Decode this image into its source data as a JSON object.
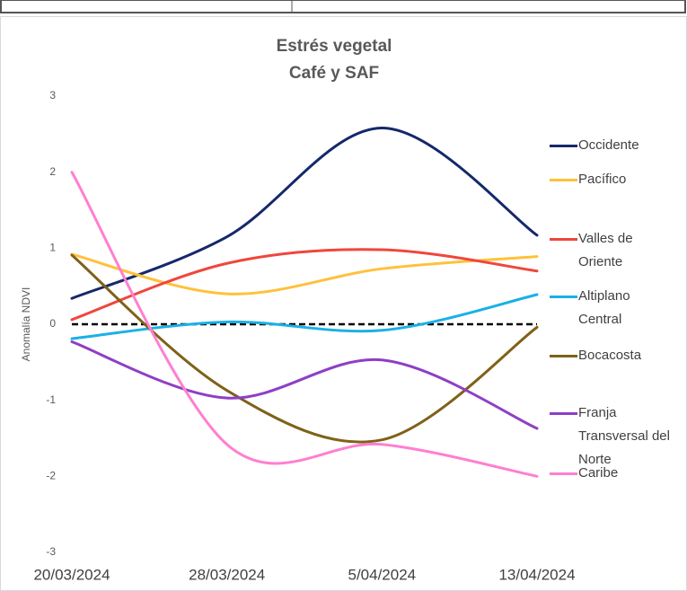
{
  "chart_data": {
    "type": "line",
    "title": "Estrés vegetal",
    "subtitle": "Café y SAF",
    "y_label": "Anomalía NDVI",
    "categories": [
      "20/03/2024",
      "28/03/2024",
      "5/04/2024",
      "13/04/2024"
    ],
    "ylim": [
      -3,
      3
    ],
    "yticks": [
      -3,
      -2,
      -1,
      0,
      1,
      2,
      3
    ],
    "smooth": true,
    "zero_line": true,
    "series": [
      {
        "name": "Occidente",
        "color": "#14286b",
        "values": [
          0.34,
          1.15,
          2.58,
          1.17
        ]
      },
      {
        "name": "Pacífico",
        "color": "#ffc13b",
        "values": [
          0.92,
          0.4,
          0.73,
          0.89
        ]
      },
      {
        "name": "Valles de Oriente",
        "color": "#f0463c",
        "values": [
          0.06,
          0.8,
          0.98,
          0.7
        ]
      },
      {
        "name": "Altiplano Central",
        "color": "#1ab0e6",
        "values": [
          -0.19,
          0.03,
          -0.08,
          0.39
        ]
      },
      {
        "name": "Bocacosta",
        "color": "#7f6118",
        "values": [
          0.91,
          -0.87,
          -1.52,
          -0.04
        ]
      },
      {
        "name": "Franja Transversal del Norte",
        "color": "#8e3fc5",
        "values": [
          -0.23,
          -0.97,
          -0.47,
          -1.37
        ]
      },
      {
        "name": "Caribe",
        "color": "#ff7fd0",
        "values": [
          2.0,
          -1.58,
          -1.58,
          -2.0
        ]
      }
    ]
  }
}
